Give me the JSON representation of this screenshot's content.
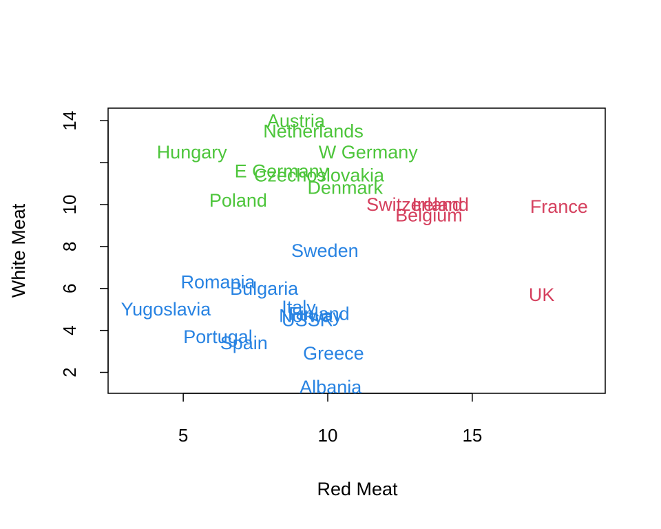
{
  "chart_data": {
    "type": "scatter",
    "title": "",
    "xlabel": "Red Meat",
    "ylabel": "White Meat",
    "xlim": [
      2.4,
      19.6
    ],
    "ylim": [
      1.0,
      14.6
    ],
    "grid": false,
    "legend": "none",
    "x_ticks": [
      5,
      10,
      15
    ],
    "x_tick_labels": [
      "5",
      "10",
      "15"
    ],
    "y_ticks": [
      2,
      4,
      6,
      8,
      10,
      12,
      14
    ],
    "y_tick_labels": [
      "2",
      "4",
      "6",
      "8",
      "10",
      "",
      "14"
    ],
    "colors": {
      "green": "#4DC53B",
      "blue": "#2883E2",
      "red": "#D5405E"
    },
    "points": [
      {
        "label": "Austria",
        "x": 8.9,
        "y": 14.0,
        "color": "green"
      },
      {
        "label": "Netherlands",
        "x": 9.5,
        "y": 13.5,
        "color": "green"
      },
      {
        "label": "Hungary",
        "x": 5.3,
        "y": 12.5,
        "color": "green"
      },
      {
        "label": "W Germany",
        "x": 11.4,
        "y": 12.5,
        "color": "green"
      },
      {
        "label": "E Germany",
        "x": 8.4,
        "y": 11.6,
        "color": "green"
      },
      {
        "label": "Czechoslovakia",
        "x": 9.7,
        "y": 11.4,
        "color": "green"
      },
      {
        "label": "Denmark",
        "x": 10.6,
        "y": 10.8,
        "color": "green"
      },
      {
        "label": "Poland",
        "x": 6.9,
        "y": 10.2,
        "color": "green"
      },
      {
        "label": "Switzerland",
        "x": 13.0,
        "y": 10.0,
        "color": "red"
      },
      {
        "label": "Ireland",
        "x": 13.9,
        "y": 10.0,
        "color": "red"
      },
      {
        "label": "France",
        "x": 18.0,
        "y": 9.9,
        "color": "red"
      },
      {
        "label": "Belgium",
        "x": 13.5,
        "y": 9.5,
        "color": "red"
      },
      {
        "label": "UK",
        "x": 17.4,
        "y": 5.7,
        "color": "red"
      },
      {
        "label": "Sweden",
        "x": 9.9,
        "y": 7.8,
        "color": "blue"
      },
      {
        "label": "Romania",
        "x": 6.2,
        "y": 6.3,
        "color": "blue"
      },
      {
        "label": "Bulgaria",
        "x": 7.8,
        "y": 6.0,
        "color": "blue"
      },
      {
        "label": "Yugoslavia",
        "x": 4.4,
        "y": 5.0,
        "color": "blue"
      },
      {
        "label": "Italy",
        "x": 9.0,
        "y": 5.1,
        "color": "blue"
      },
      {
        "label": "Norway",
        "x": 9.4,
        "y": 4.7,
        "color": "blue"
      },
      {
        "label": "Finland",
        "x": 9.7,
        "y": 4.8,
        "color": "blue"
      },
      {
        "label": "USSR",
        "x": 9.3,
        "y": 4.5,
        "color": "blue"
      },
      {
        "label": "Portugal",
        "x": 6.2,
        "y": 3.7,
        "color": "blue"
      },
      {
        "label": "Spain",
        "x": 7.1,
        "y": 3.4,
        "color": "blue"
      },
      {
        "label": "Greece",
        "x": 10.2,
        "y": 2.9,
        "color": "blue"
      },
      {
        "label": "Albania",
        "x": 10.1,
        "y": 1.3,
        "color": "blue"
      }
    ]
  }
}
